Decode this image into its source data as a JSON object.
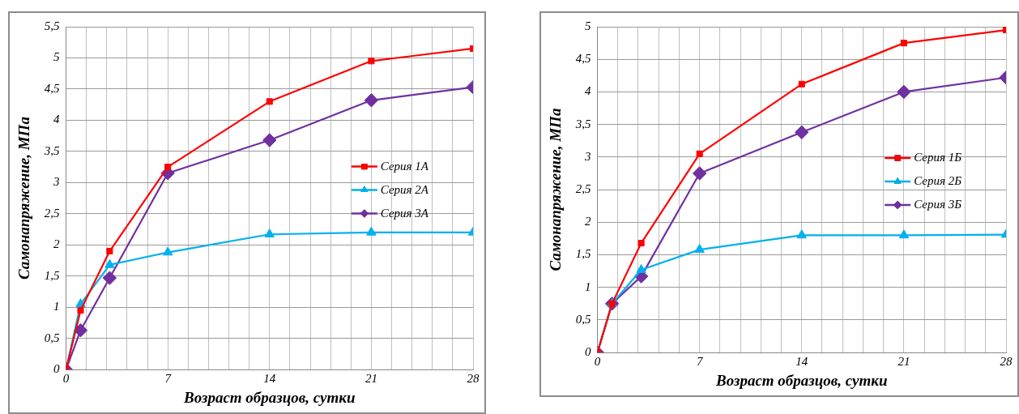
{
  "chart_data": [
    {
      "type": "line",
      "xlabel": "Возраст образцов, сутки",
      "ylabel": "Самонапряжение, МПа",
      "x": [
        0,
        1,
        3,
        7,
        14,
        21,
        28
      ],
      "series": [
        {
          "name": "Серия 1А",
          "color": "#ff0000",
          "marker": "square",
          "values": [
            0,
            0.95,
            1.9,
            3.25,
            4.3,
            4.95,
            5.15
          ]
        },
        {
          "name": "Серия 2А",
          "color": "#00b0f0",
          "marker": "triangle",
          "values": [
            0,
            1.05,
            1.68,
            1.88,
            2.17,
            2.2,
            2.2
          ]
        },
        {
          "name": "Серия 3А",
          "color": "#7030a0",
          "marker": "diamond",
          "values": [
            0,
            0.63,
            1.47,
            3.15,
            3.68,
            4.32,
            4.53
          ]
        }
      ],
      "xlim": [
        0,
        28
      ],
      "xticks": [
        0,
        {
          "value": 1.4,
          "label": null
        },
        {
          "value": 2.8,
          "label": null
        },
        {
          "value": 4.2,
          "label": null
        },
        {
          "value": 5.6,
          "label": null
        },
        7,
        {
          "value": 8.4,
          "label": null
        },
        {
          "value": 9.8,
          "label": null
        },
        {
          "value": 11.2,
          "label": null
        },
        {
          "value": 12.6,
          "label": null
        },
        14,
        {
          "value": 15.4,
          "label": null
        },
        {
          "value": 16.8,
          "label": null
        },
        {
          "value": 18.2,
          "label": null
        },
        {
          "value": 19.6,
          "label": null
        },
        21,
        {
          "value": 22.4,
          "label": null
        },
        {
          "value": 23.8,
          "label": null
        },
        {
          "value": 25.2,
          "label": null
        },
        {
          "value": 26.6,
          "label": null
        },
        28
      ],
      "ylim": [
        0,
        5.5
      ],
      "yticks": [
        0,
        {
          "value": 0.5,
          "label": "0,5"
        },
        1,
        {
          "value": 1.5,
          "label": "1,5"
        },
        2,
        {
          "value": 2.5,
          "label": "2,5"
        },
        3,
        {
          "value": 3.5,
          "label": "3,5"
        },
        4,
        {
          "value": 4.5,
          "label": "4,5"
        },
        5,
        {
          "value": 5.5,
          "label": "5,5"
        }
      ],
      "grid": true,
      "legend": "right"
    },
    {
      "type": "line",
      "xlabel": "Возраст образцов, сутки",
      "ylabel": "Самонапряжение, МПа",
      "x": [
        0,
        1,
        3,
        7,
        14,
        21,
        28
      ],
      "series": [
        {
          "name": "Серия 1Б",
          "color": "#ff0000",
          "marker": "square",
          "values": [
            0,
            0.75,
            1.68,
            3.05,
            4.12,
            4.75,
            4.95
          ]
        },
        {
          "name": "Серия 2Б",
          "color": "#00b0f0",
          "marker": "triangle",
          "values": [
            0,
            0.75,
            1.27,
            1.58,
            1.8,
            1.8,
            1.81
          ]
        },
        {
          "name": "Серия 3Б",
          "color": "#7030a0",
          "marker": "diamond",
          "values": [
            0,
            0.75,
            1.17,
            2.75,
            3.38,
            4.0,
            4.22
          ]
        }
      ],
      "xlim": [
        0,
        28
      ],
      "xticks": [
        0,
        {
          "value": 1.4,
          "label": null
        },
        {
          "value": 2.8,
          "label": null
        },
        {
          "value": 4.2,
          "label": null
        },
        {
          "value": 5.6,
          "label": null
        },
        7,
        {
          "value": 8.4,
          "label": null
        },
        {
          "value": 9.8,
          "label": null
        },
        {
          "value": 11.2,
          "label": null
        },
        {
          "value": 12.6,
          "label": null
        },
        14,
        {
          "value": 15.4,
          "label": null
        },
        {
          "value": 16.8,
          "label": null
        },
        {
          "value": 18.2,
          "label": null
        },
        {
          "value": 19.6,
          "label": null
        },
        21,
        {
          "value": 22.4,
          "label": null
        },
        {
          "value": 23.8,
          "label": null
        },
        {
          "value": 25.2,
          "label": null
        },
        {
          "value": 26.6,
          "label": null
        },
        28
      ],
      "ylim": [
        0,
        5
      ],
      "yticks": [
        0,
        {
          "value": 0.5,
          "label": "0,5"
        },
        1,
        {
          "value": 1.5,
          "label": "1,5"
        },
        2,
        {
          "value": 2.5,
          "label": "2,5"
        },
        3,
        {
          "value": 3.5,
          "label": "3,5"
        },
        4,
        {
          "value": 4.5,
          "label": "4,5"
        },
        5
      ],
      "grid": true,
      "legend": "right"
    }
  ]
}
